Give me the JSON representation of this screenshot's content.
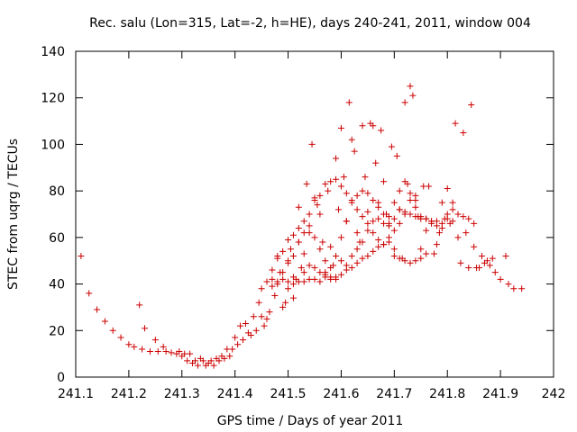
{
  "chart_data": {
    "type": "scatter",
    "title": "Rec. salu (Lon=315, Lat=-2, h=HE), days 240-241, 2011, window 004",
    "xlabel": "GPS time / Days of year 2011",
    "ylabel": "STEC from uqrg / TECUs",
    "xlim": [
      241.1,
      242
    ],
    "ylim": [
      0,
      140
    ],
    "xticks": [
      241.1,
      241.2,
      241.3,
      241.4,
      241.5,
      241.6,
      241.7,
      241.8,
      241.9,
      242
    ],
    "xtick_labels": [
      "241.1",
      "241.2",
      "241.3",
      "241.4",
      "241.5",
      "241.6",
      "241.7",
      "241.8",
      "241.9",
      "242"
    ],
    "yticks": [
      0,
      20,
      40,
      60,
      80,
      100,
      120,
      140
    ],
    "ytick_labels": [
      "0",
      "20",
      "40",
      "60",
      "80",
      "100",
      "120",
      "140"
    ],
    "grid": false,
    "marker": "+",
    "color": "#cc0000",
    "series": [
      {
        "name": "STEC",
        "points": [
          [
            241.11,
            52
          ],
          [
            241.125,
            36
          ],
          [
            241.14,
            29
          ],
          [
            241.155,
            24
          ],
          [
            241.17,
            20
          ],
          [
            241.185,
            17
          ],
          [
            241.2,
            14
          ],
          [
            241.21,
            13
          ],
          [
            241.22,
            31
          ],
          [
            241.23,
            21
          ],
          [
            241.225,
            12
          ],
          [
            241.24,
            11
          ],
          [
            241.25,
            16
          ],
          [
            241.255,
            11
          ],
          [
            241.265,
            13
          ],
          [
            241.27,
            11
          ],
          [
            241.28,
            10.5
          ],
          [
            241.29,
            10
          ],
          [
            241.295,
            11
          ],
          [
            241.3,
            9
          ],
          [
            241.305,
            10
          ],
          [
            241.31,
            7
          ],
          [
            241.315,
            10
          ],
          [
            241.32,
            6
          ],
          [
            241.325,
            7
          ],
          [
            241.33,
            5
          ],
          [
            241.335,
            8
          ],
          [
            241.34,
            7
          ],
          [
            241.345,
            5
          ],
          [
            241.35,
            6
          ],
          [
            241.355,
            7
          ],
          [
            241.36,
            5
          ],
          [
            241.365,
            8
          ],
          [
            241.37,
            7
          ],
          [
            241.375,
            9
          ],
          [
            241.38,
            8
          ],
          [
            241.385,
            12
          ],
          [
            241.39,
            9
          ],
          [
            241.395,
            12
          ],
          [
            241.4,
            17
          ],
          [
            241.405,
            14
          ],
          [
            241.41,
            22
          ],
          [
            241.415,
            16
          ],
          [
            241.42,
            23
          ],
          [
            241.425,
            19
          ],
          [
            241.43,
            18
          ],
          [
            241.435,
            26
          ],
          [
            241.44,
            20
          ],
          [
            241.445,
            32
          ],
          [
            241.45,
            26
          ],
          [
            241.455,
            22
          ],
          [
            241.46,
            25
          ],
          [
            241.465,
            28
          ],
          [
            241.47,
            39
          ],
          [
            241.475,
            35
          ],
          [
            241.48,
            51
          ],
          [
            241.485,
            45
          ],
          [
            241.49,
            30
          ],
          [
            241.495,
            32
          ],
          [
            241.5,
            38
          ],
          [
            241.505,
            55
          ],
          [
            241.51,
            34
          ],
          [
            241.515,
            42
          ],
          [
            241.52,
            73
          ],
          [
            241.525,
            47
          ],
          [
            241.53,
            45
          ],
          [
            241.535,
            83
          ],
          [
            241.54,
            65
          ],
          [
            241.545,
            100
          ],
          [
            241.55,
            77
          ],
          [
            241.555,
            74
          ],
          [
            241.56,
            70
          ],
          [
            241.565,
            58
          ],
          [
            241.57,
            45
          ],
          [
            241.575,
            80
          ],
          [
            241.58,
            56
          ],
          [
            241.585,
            48
          ],
          [
            241.59,
            94
          ],
          [
            241.595,
            72
          ],
          [
            241.6,
            107
          ],
          [
            241.605,
            86
          ],
          [
            241.61,
            67
          ],
          [
            241.615,
            118
          ],
          [
            241.62,
            102
          ],
          [
            241.625,
            97
          ],
          [
            241.63,
            55
          ],
          [
            241.635,
            58
          ],
          [
            241.64,
            108
          ],
          [
            241.645,
            86
          ],
          [
            241.65,
            71
          ],
          [
            241.655,
            109
          ],
          [
            241.66,
            108
          ],
          [
            241.665,
            92
          ],
          [
            241.67,
            75
          ],
          [
            241.675,
            106
          ],
          [
            241.68,
            84
          ],
          [
            241.685,
            70
          ],
          [
            241.69,
            65
          ],
          [
            241.695,
            99
          ],
          [
            241.7,
            52
          ],
          [
            241.705,
            95
          ],
          [
            241.71,
            72
          ],
          [
            241.715,
            51
          ],
          [
            241.72,
            118
          ],
          [
            241.725,
            83
          ],
          [
            241.73,
            125
          ],
          [
            241.735,
            121
          ],
          [
            241.74,
            78
          ],
          [
            241.745,
            69
          ],
          [
            241.75,
            55
          ],
          [
            241.755,
            82
          ],
          [
            241.76,
            63
          ],
          [
            241.765,
            82
          ],
          [
            241.77,
            67
          ],
          [
            241.775,
            53
          ],
          [
            241.78,
            57
          ],
          [
            241.785,
            62
          ],
          [
            241.79,
            75
          ],
          [
            241.795,
            68
          ],
          [
            241.8,
            81
          ],
          [
            241.805,
            66
          ],
          [
            241.81,
            75
          ],
          [
            241.815,
            109
          ],
          [
            241.82,
            60
          ],
          [
            241.825,
            49
          ],
          [
            241.83,
            105
          ],
          [
            241.835,
            62
          ],
          [
            241.84,
            47
          ],
          [
            241.845,
            117
          ],
          [
            241.85,
            56
          ],
          [
            241.855,
            47
          ],
          [
            241.86,
            47
          ],
          [
            241.865,
            52
          ],
          [
            241.87,
            49
          ],
          [
            241.875,
            50
          ],
          [
            241.88,
            48
          ],
          [
            241.885,
            51
          ],
          [
            241.89,
            45
          ],
          [
            241.9,
            42
          ],
          [
            241.91,
            52
          ],
          [
            241.915,
            40
          ],
          [
            241.925,
            38
          ],
          [
            241.94,
            38
          ],
          [
            241.5,
            41
          ],
          [
            241.51,
            40
          ],
          [
            241.52,
            41
          ],
          [
            241.53,
            41
          ],
          [
            241.54,
            42
          ],
          [
            241.55,
            42
          ],
          [
            241.56,
            41
          ],
          [
            241.57,
            43
          ],
          [
            241.58,
            42
          ],
          [
            241.59,
            43
          ],
          [
            241.6,
            44
          ],
          [
            241.61,
            46
          ],
          [
            241.62,
            47
          ],
          [
            241.63,
            49
          ],
          [
            241.64,
            51
          ],
          [
            241.65,
            52
          ],
          [
            241.66,
            54
          ],
          [
            241.67,
            56
          ],
          [
            241.68,
            57
          ],
          [
            241.69,
            58
          ],
          [
            241.7,
            55
          ],
          [
            241.71,
            51
          ],
          [
            241.72,
            50
          ],
          [
            241.73,
            49
          ],
          [
            241.74,
            50
          ],
          [
            241.75,
            51
          ],
          [
            241.76,
            53
          ],
          [
            241.48,
            41
          ],
          [
            241.49,
            45
          ],
          [
            241.5,
            50
          ],
          [
            241.51,
            52
          ],
          [
            241.52,
            58
          ],
          [
            241.53,
            62
          ],
          [
            241.54,
            70
          ],
          [
            241.55,
            76
          ],
          [
            241.56,
            78
          ],
          [
            241.57,
            83
          ],
          [
            241.58,
            84
          ],
          [
            241.59,
            85
          ],
          [
            241.6,
            82
          ],
          [
            241.61,
            79
          ],
          [
            241.62,
            75
          ],
          [
            241.63,
            72
          ],
          [
            241.64,
            69
          ],
          [
            241.65,
            66
          ],
          [
            241.66,
            62
          ],
          [
            241.67,
            59
          ],
          [
            241.68,
            57
          ],
          [
            241.69,
            60
          ],
          [
            241.7,
            63
          ],
          [
            241.71,
            66
          ],
          [
            241.72,
            70
          ],
          [
            241.73,
            76
          ],
          [
            241.74,
            73
          ],
          [
            241.75,
            69
          ],
          [
            241.76,
            68
          ],
          [
            241.77,
            67
          ],
          [
            241.78,
            67
          ],
          [
            241.79,
            66
          ],
          [
            241.8,
            68
          ],
          [
            241.81,
            67
          ],
          [
            241.45,
            38
          ],
          [
            241.46,
            41
          ],
          [
            241.47,
            46
          ],
          [
            241.48,
            52
          ],
          [
            241.49,
            54
          ],
          [
            241.5,
            59
          ],
          [
            241.51,
            61
          ],
          [
            241.52,
            64
          ],
          [
            241.53,
            67
          ],
          [
            241.54,
            62
          ],
          [
            241.55,
            60
          ],
          [
            241.56,
            55
          ],
          [
            241.57,
            50
          ],
          [
            241.58,
            47
          ],
          [
            241.59,
            52
          ],
          [
            241.6,
            60
          ],
          [
            241.61,
            67
          ],
          [
            241.62,
            76
          ],
          [
            241.63,
            78
          ],
          [
            241.64,
            80
          ],
          [
            241.65,
            79
          ],
          [
            241.66,
            76
          ],
          [
            241.67,
            73
          ],
          [
            241.68,
            70
          ],
          [
            241.69,
            69
          ],
          [
            241.7,
            75
          ],
          [
            241.71,
            80
          ],
          [
            241.72,
            84
          ],
          [
            241.73,
            79
          ],
          [
            241.74,
            76
          ],
          [
            241.47,
            42
          ],
          [
            241.48,
            40
          ],
          [
            241.49,
            42
          ],
          [
            241.5,
            49
          ],
          [
            241.51,
            43
          ],
          [
            241.52,
            58
          ],
          [
            241.53,
            53
          ],
          [
            241.54,
            48
          ],
          [
            241.55,
            47
          ],
          [
            241.56,
            45
          ],
          [
            241.57,
            44
          ],
          [
            241.58,
            43
          ],
          [
            241.59,
            42
          ],
          [
            241.6,
            50
          ],
          [
            241.61,
            48
          ],
          [
            241.62,
            52
          ],
          [
            241.63,
            62
          ],
          [
            241.64,
            58
          ],
          [
            241.65,
            63
          ],
          [
            241.66,
            67
          ],
          [
            241.67,
            68
          ],
          [
            241.68,
            66
          ],
          [
            241.69,
            66
          ],
          [
            241.7,
            68
          ],
          [
            241.71,
            72
          ],
          [
            241.72,
            71
          ],
          [
            241.73,
            70
          ],
          [
            241.74,
            69
          ],
          [
            241.75,
            68
          ],
          [
            241.76,
            68
          ],
          [
            241.77,
            66
          ],
          [
            241.78,
            65
          ],
          [
            241.79,
            64
          ],
          [
            241.8,
            70
          ],
          [
            241.81,
            72
          ],
          [
            241.82,
            70
          ],
          [
            241.83,
            69
          ],
          [
            241.84,
            68
          ],
          [
            241.85,
            66
          ]
        ]
      }
    ]
  }
}
